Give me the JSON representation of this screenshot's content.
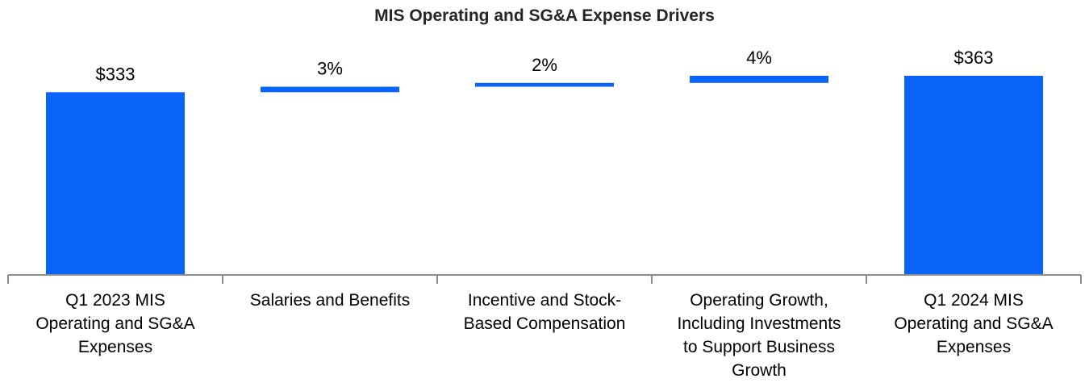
{
  "chart_data": {
    "type": "bar",
    "subtype": "waterfall",
    "title": "MIS Operating and SG&A Expense Drivers",
    "categories": [
      "Q1 2023 MIS Operating and SG&A Expenses",
      "Salaries and Benefits",
      "Incentive and Stock-Based Compensation",
      "Operating Growth, Including Investments to Support Business Growth",
      "Q1 2024 MIS Operating and SG&A Expenses"
    ],
    "steps": [
      {
        "kind": "total",
        "value": 333,
        "label": "$333"
      },
      {
        "kind": "delta",
        "pct": 3,
        "start": 333,
        "end": 343,
        "label": "3%"
      },
      {
        "kind": "delta",
        "pct": 2,
        "start": 343,
        "end": 350,
        "label": "2%"
      },
      {
        "kind": "delta",
        "pct": 4,
        "start": 350,
        "end": 363,
        "label": "4%"
      },
      {
        "kind": "total",
        "value": 363,
        "label": "$363"
      }
    ],
    "ylim": [
      0,
      363
    ],
    "xlabel": "",
    "ylabel": "",
    "grid": false,
    "legend": "none",
    "bar_color": "#0A64FA"
  }
}
